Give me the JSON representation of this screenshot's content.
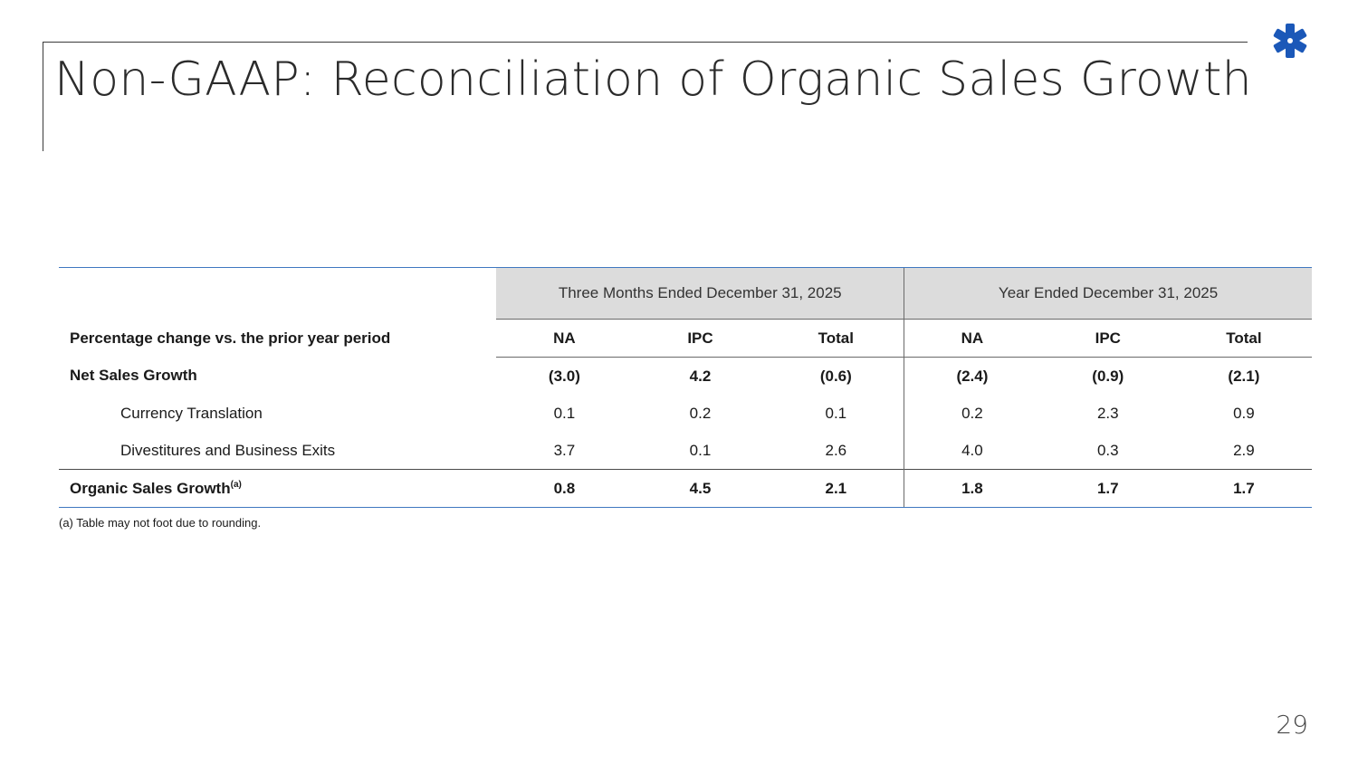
{
  "slide": {
    "title": "Non-GAAP: Reconciliation of Organic Sales Growth",
    "page_number": "29",
    "footnote": "(a) Table may not foot due to rounding.",
    "logo_icon": "asterisk-logo-icon",
    "accent_color": "#1b58b8"
  },
  "table": {
    "groups": [
      "Three Months Ended December 31, 2025",
      "Year Ended December 31, 2025"
    ],
    "row_header_label": "Percentage change vs. the prior year period",
    "columns": [
      "NA",
      "IPC",
      "Total",
      "NA",
      "IPC",
      "Total"
    ],
    "rows": [
      {
        "label": "Net Sales Growth",
        "values": [
          "(3.0)",
          "4.2",
          "(0.6)",
          "(2.4)",
          "(0.9)",
          "(2.1)"
        ]
      },
      {
        "label": "Currency Translation",
        "values": [
          "0.1",
          "0.2",
          "0.1",
          "0.2",
          "2.3",
          "0.9"
        ]
      },
      {
        "label": "Divestitures and Business Exits",
        "values": [
          "3.7",
          "0.1",
          "2.6",
          "4.0",
          "0.3",
          "2.9"
        ]
      },
      {
        "label": "Organic Sales Growth",
        "footnote_marker": "(a)",
        "values": [
          "0.8",
          "4.5",
          "2.1",
          "1.8",
          "1.7",
          "1.7"
        ]
      }
    ]
  }
}
